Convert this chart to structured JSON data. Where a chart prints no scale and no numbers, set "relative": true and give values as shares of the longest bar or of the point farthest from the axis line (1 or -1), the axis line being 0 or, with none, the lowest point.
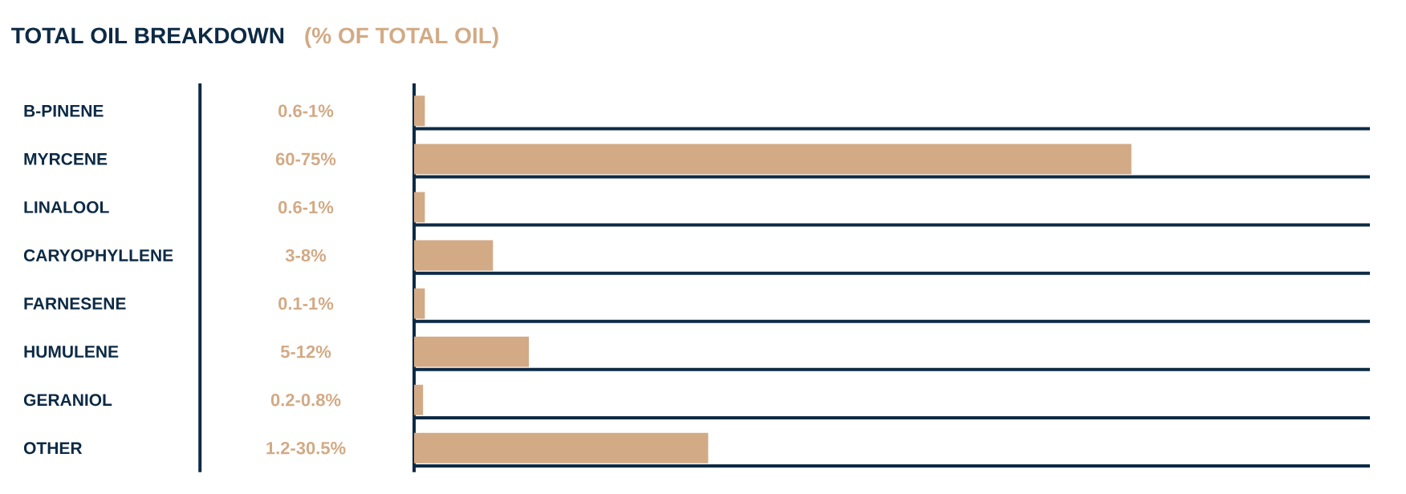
{
  "chart_data": {
    "type": "bar",
    "orientation": "horizontal",
    "relative": true,
    "title": "TOTAL OIL BREAKDOWN",
    "subtitle": "(% OF TOTAL OIL)",
    "categories": [
      "B-PINENE",
      "MYRCENE",
      "LINALOOL",
      "CARYOPHYLLENE",
      "FARNESENE",
      "HUMULENE",
      "GERANIOL",
      "OTHER"
    ],
    "values": [
      0.015,
      1,
      0.015,
      0.11,
      0.015,
      0.16,
      0.0125,
      0.41
    ],
    "annotations": [
      "0.6-1%",
      "60-75%",
      "0.6-1%",
      "3-8%",
      "0.1-1%",
      "5-12%",
      "0.2-0.8%",
      "1.2-30.5%"
    ],
    "color": "#d2aa85",
    "grid": "y"
  }
}
